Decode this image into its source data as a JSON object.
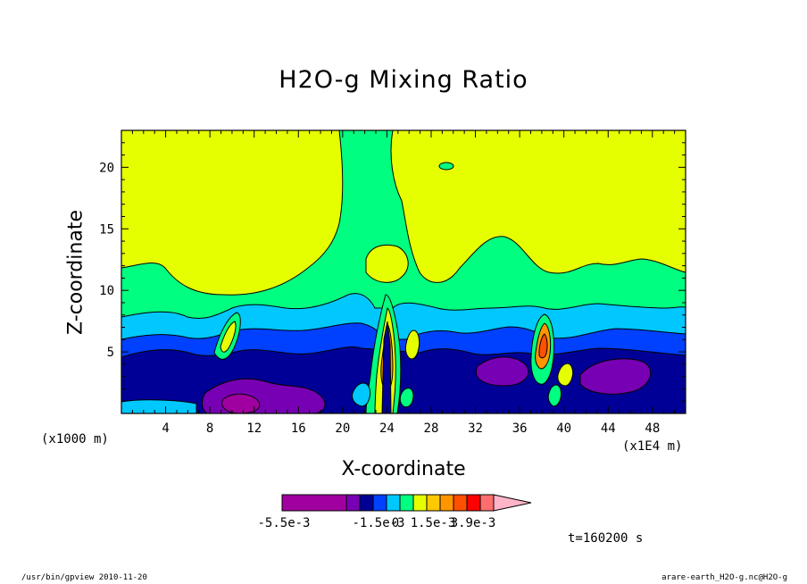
{
  "chart_data": {
    "type": "heatmap",
    "title": "H2O-g Mixing Ratio",
    "xlabel": "X-coordinate",
    "ylabel": "Z-coordinate",
    "x_unit": "(x1000 m)",
    "x_scale": "(x1E4 m)",
    "xlim": [
      0,
      51
    ],
    "ylim": [
      0,
      23
    ],
    "x_ticks": [
      4,
      8,
      12,
      16,
      20,
      24,
      28,
      32,
      36,
      40,
      44,
      48
    ],
    "y_ticks": [
      5,
      10,
      15,
      20
    ],
    "colorbar": {
      "colors": [
        "#a000a0",
        "#7800b4",
        "#000096",
        "#0040ff",
        "#00c8ff",
        "#00ff80",
        "#e6ff00",
        "#ffc800",
        "#ff9600",
        "#ff5000",
        "#ff0000",
        "#ff6e6e",
        "#ffb4c8"
      ],
      "labels": [
        "-5.5e-3",
        "-1.5e-3",
        "0",
        "1.5e-3",
        "3.9e-3"
      ],
      "extend": "max"
    },
    "annotation_time": "t=160200 s"
  },
  "footer": {
    "left": "/usr/bin/gpview   2010-11-20",
    "right": "arare-earth_H2O-g.nc@H2O-g"
  }
}
